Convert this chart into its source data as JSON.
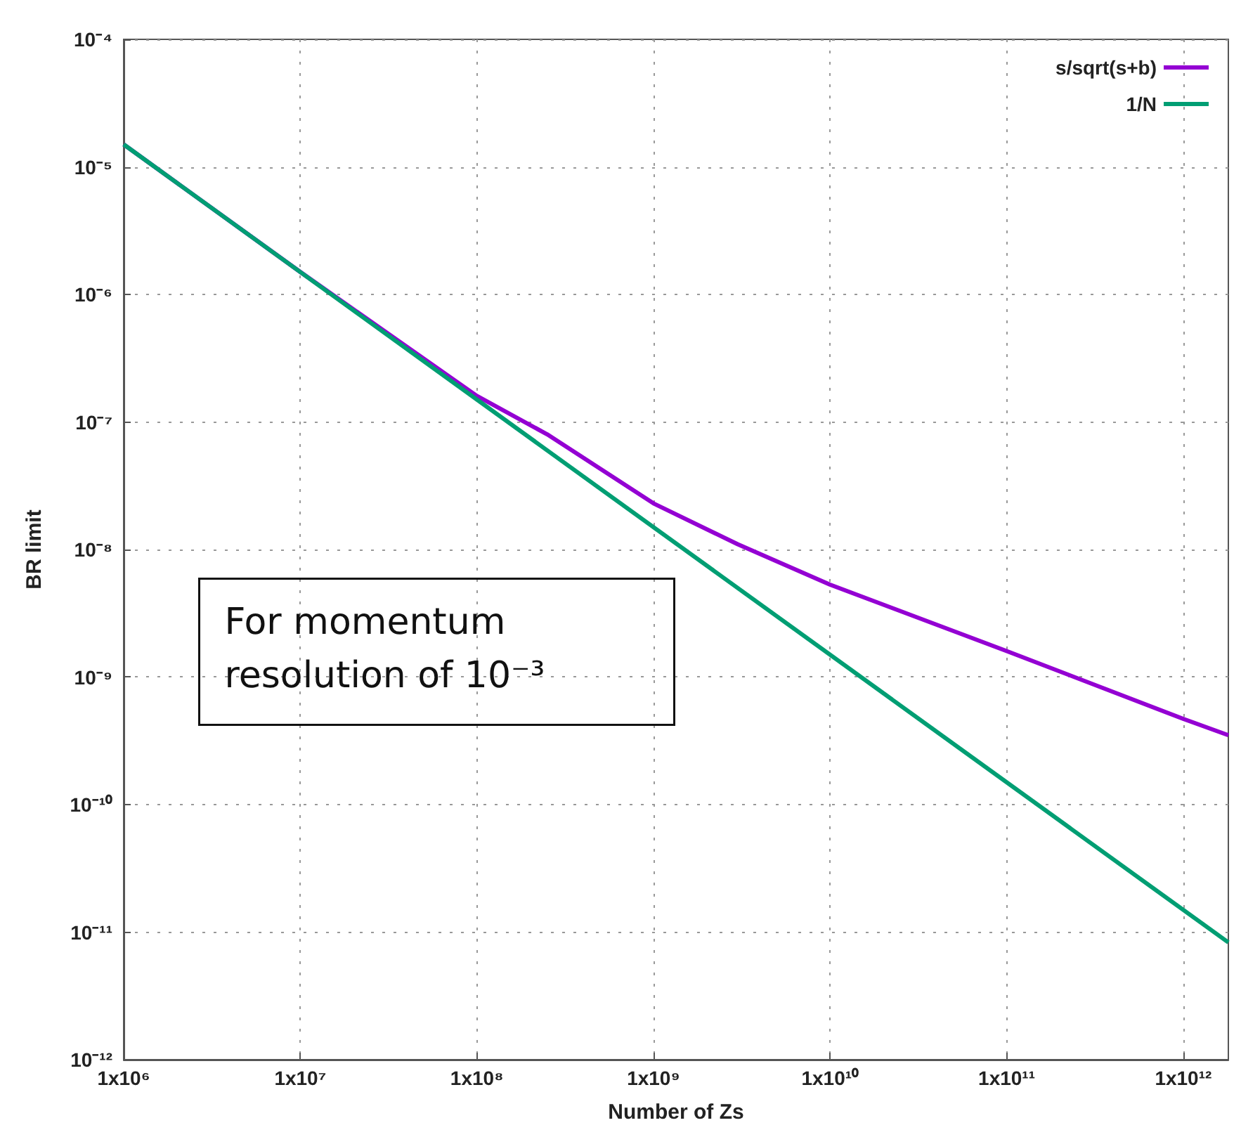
{
  "chart_data": {
    "type": "line",
    "xlabel": "Number of Zs",
    "ylabel": "BR limit",
    "annotations": [
      "For momentum resolution of 10⁻³"
    ],
    "series": [
      {
        "name": "s/sqrt(s+b)",
        "color": "#9400d3",
        "x": [
          1000000,
          10000000,
          100000000,
          250000000,
          1000000000,
          3000000000,
          10000000000,
          100000000000,
          1000000000000,
          1800000000000
        ],
        "values": [
          1.5e-05,
          1.5e-06,
          1.6e-07,
          8e-08,
          2.3e-08,
          1.1e-08,
          5.3e-09,
          1.6e-09,
          4.7e-10,
          3.5e-10
        ]
      },
      {
        "name": "1/N",
        "color": "#009e73",
        "x": [
          1000000,
          1800000000000
        ],
        "values": [
          1.5e-05,
          8.3e-12
        ]
      }
    ],
    "xlim": [
      1000000,
      1800000000000
    ],
    "xticks": [
      {
        "value": 1000000,
        "label": "1x10⁶"
      },
      {
        "value": 10000000,
        "label": "1x10⁷"
      },
      {
        "value": 100000000,
        "label": "1x10⁸"
      },
      {
        "value": 1000000000,
        "label": "1x10⁹"
      },
      {
        "value": 10000000000,
        "label": "1x10¹⁰"
      },
      {
        "value": 100000000000,
        "label": "1x10¹¹"
      },
      {
        "value": 1000000000000,
        "label": "1x10¹²"
      }
    ],
    "ylim": [
      1e-12,
      0.0001
    ],
    "yticks": [
      {
        "value": 1e-12,
        "label": "10⁻¹²"
      },
      {
        "value": 1e-11,
        "label": "10⁻¹¹"
      },
      {
        "value": 1e-10,
        "label": "10⁻¹⁰"
      },
      {
        "value": 1e-09,
        "label": "10⁻⁹"
      },
      {
        "value": 1e-08,
        "label": "10⁻⁸"
      },
      {
        "value": 1e-07,
        "label": "10⁻⁷"
      },
      {
        "value": 1e-06,
        "label": "10⁻⁶"
      },
      {
        "value": 1e-05,
        "label": "10⁻⁵"
      },
      {
        "value": 0.0001,
        "label": "10⁻⁴"
      }
    ],
    "log": "xy",
    "grid": true,
    "legend": "top right",
    "marker": "none",
    "line_style": "solid"
  }
}
